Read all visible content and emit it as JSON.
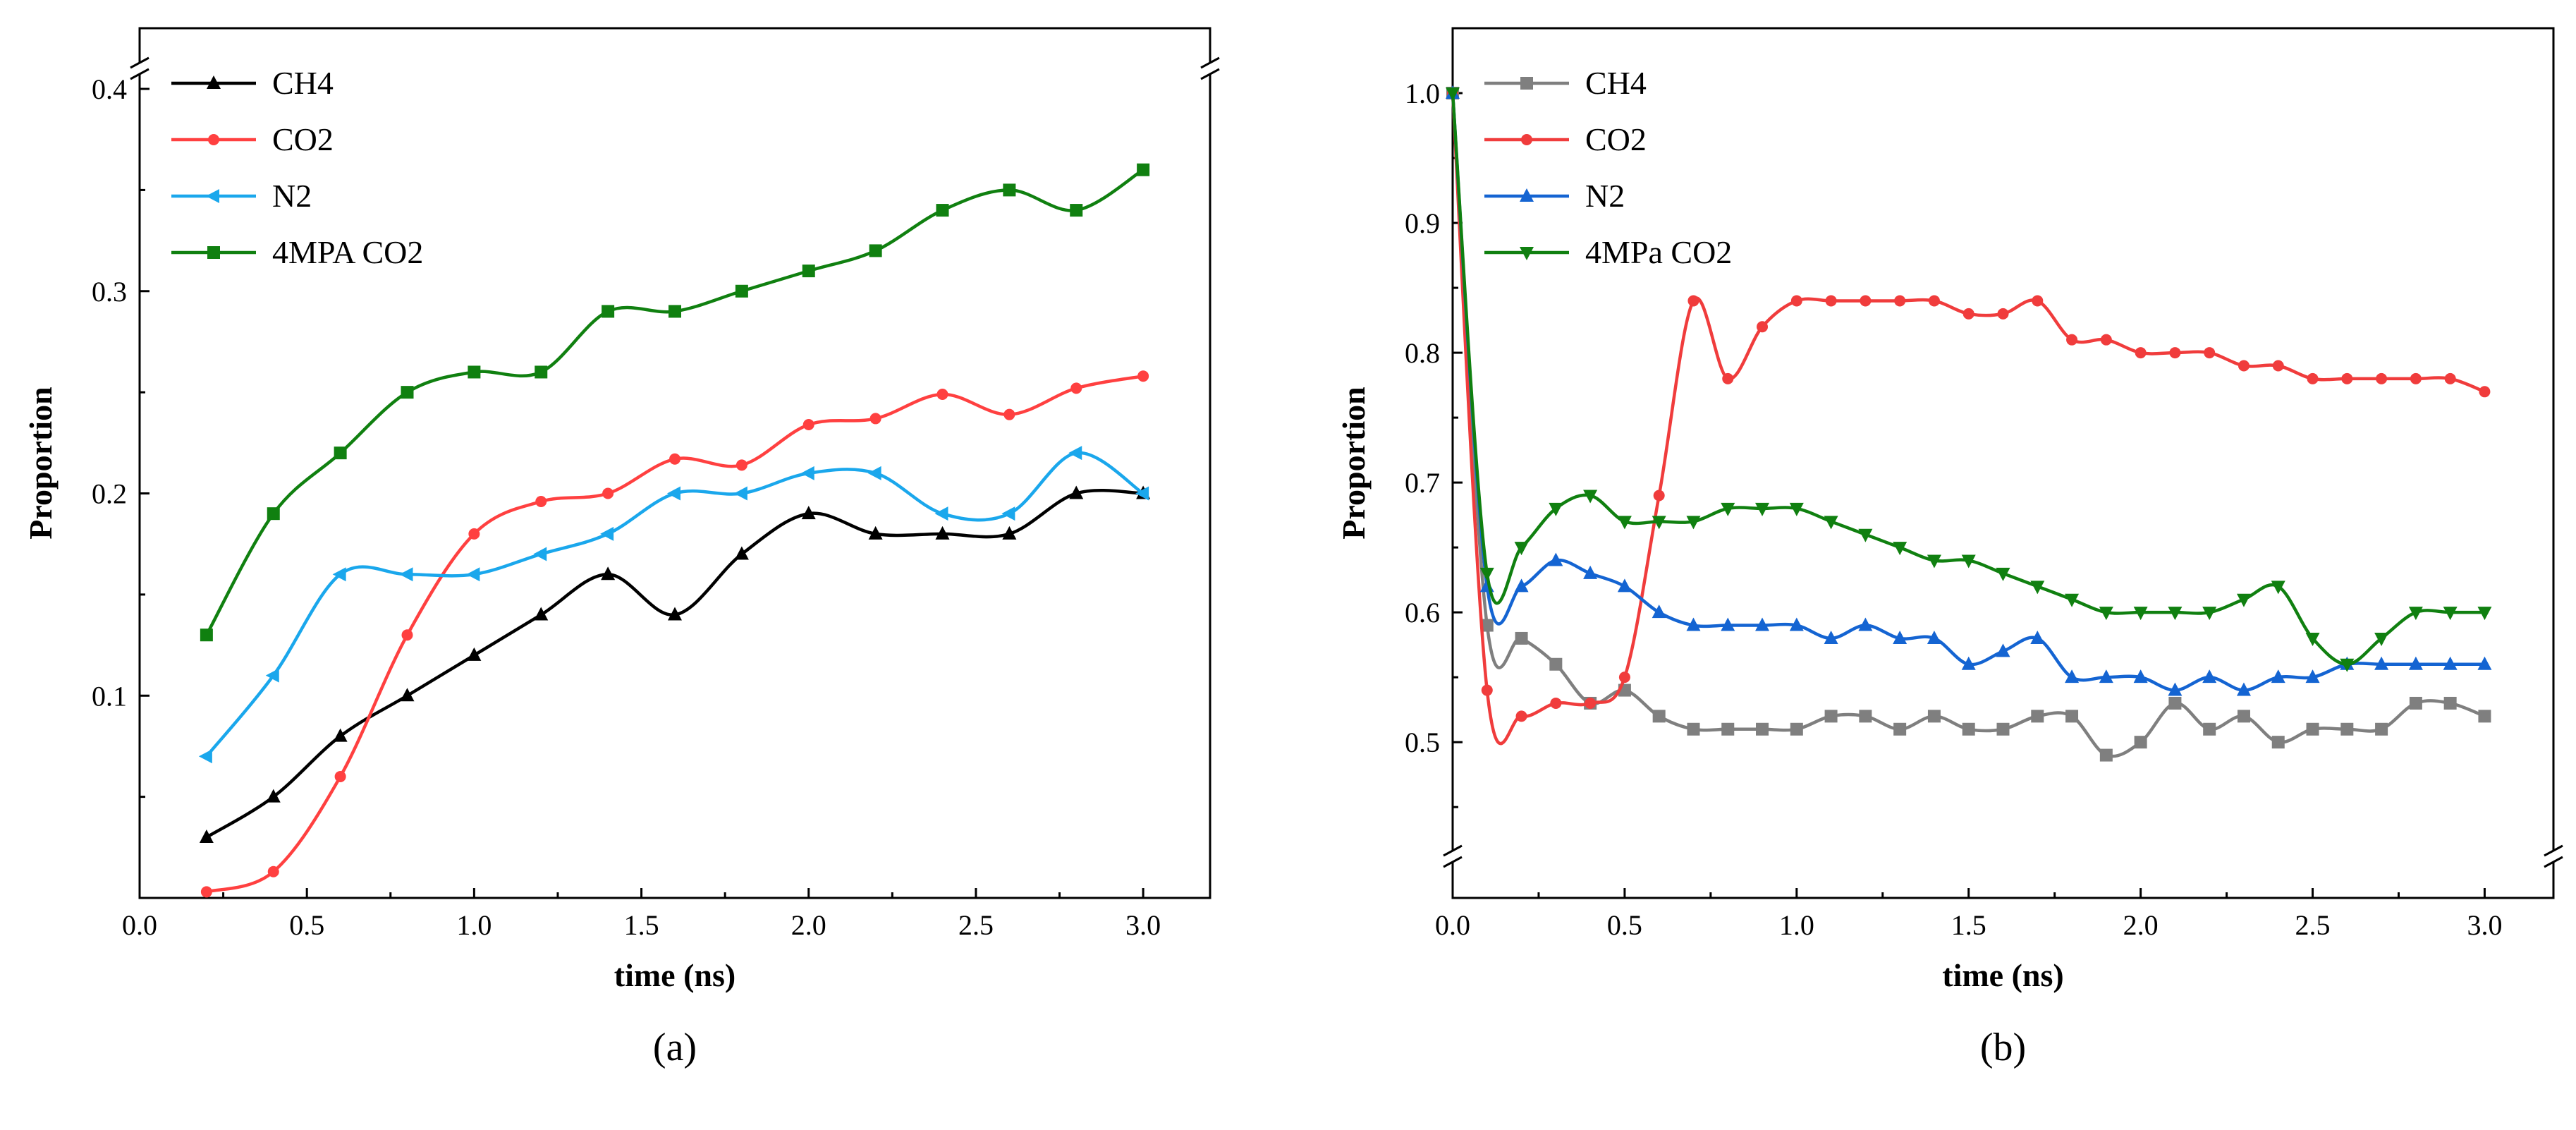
{
  "chart_data": [
    {
      "type": "line",
      "panel_label": "(a)",
      "xlabel": "time (ns)",
      "ylabel": "Proportion",
      "xlim": [
        0.0,
        3.2
      ],
      "ylim": [
        0.0,
        0.43
      ],
      "xticks": [
        "0.0",
        "0.5",
        "1.0",
        "1.5",
        "2.0",
        "2.5",
        "3.0"
      ],
      "yticks": [
        "0.1",
        "0.2",
        "0.3",
        "0.4"
      ],
      "axis_break": "y-axis top",
      "legend_position": "top-left",
      "grid": false,
      "x": [
        0.2,
        0.4,
        0.6,
        0.8,
        1.0,
        1.2,
        1.4,
        1.6,
        1.8,
        2.0,
        2.2,
        2.4,
        2.6,
        2.8,
        3.0
      ],
      "series": [
        {
          "name": "CH4",
          "color": "#000000",
          "marker": "triangle-up",
          "values": [
            0.03,
            0.05,
            0.08,
            0.1,
            0.12,
            0.14,
            0.16,
            0.14,
            0.17,
            0.19,
            0.18,
            0.18,
            0.18,
            0.2,
            0.2
          ]
        },
        {
          "name": "CO2",
          "color": "#ff4040",
          "marker": "circle",
          "values": [
            0.003,
            0.013,
            0.06,
            0.13,
            0.18,
            0.196,
            0.2,
            0.217,
            0.214,
            0.234,
            0.237,
            0.249,
            0.239,
            0.252,
            0.258
          ]
        },
        {
          "name": "N2",
          "color": "#1aa7ec",
          "marker": "triangle-left",
          "values": [
            0.07,
            0.11,
            0.16,
            0.16,
            0.16,
            0.17,
            0.18,
            0.2,
            0.2,
            0.21,
            0.21,
            0.19,
            0.19,
            0.22,
            0.2
          ]
        },
        {
          "name": "4MPA CO2",
          "color": "#108010",
          "marker": "square",
          "values": [
            0.13,
            0.19,
            0.22,
            0.25,
            0.26,
            0.26,
            0.29,
            0.29,
            0.3,
            0.31,
            0.32,
            0.34,
            0.35,
            0.34,
            0.36
          ]
        }
      ]
    },
    {
      "type": "line",
      "panel_label": "(b)",
      "xlabel": "time (ns)",
      "ylabel": "Proportion",
      "xlim": [
        0.0,
        3.2
      ],
      "ylim": [
        0.38,
        1.05
      ],
      "xticks": [
        "0.0",
        "0.5",
        "1.0",
        "1.5",
        "2.0",
        "2.5",
        "3.0"
      ],
      "yticks": [
        "0.5",
        "0.6",
        "0.7",
        "0.8",
        "0.9",
        "1.0"
      ],
      "axis_break": "y-axis bottom",
      "legend_position": "top-left",
      "grid": false,
      "x": [
        0.0,
        0.1,
        0.2,
        0.3,
        0.4,
        0.5,
        0.6,
        0.7,
        0.8,
        0.9,
        1.0,
        1.1,
        1.2,
        1.3,
        1.4,
        1.5,
        1.6,
        1.7,
        1.8,
        1.9,
        2.0,
        2.1,
        2.2,
        2.3,
        2.4,
        2.5,
        2.6,
        2.7,
        2.8,
        2.9,
        3.0
      ],
      "series": [
        {
          "name": "CH4",
          "color": "#7f7f7f",
          "marker": "square",
          "values": [
            1.0,
            0.59,
            0.58,
            0.56,
            0.53,
            0.54,
            0.52,
            0.51,
            0.51,
            0.51,
            0.51,
            0.52,
            0.52,
            0.51,
            0.52,
            0.51,
            0.51,
            0.52,
            0.52,
            0.49,
            0.5,
            0.53,
            0.51,
            0.52,
            0.5,
            0.51,
            0.51,
            0.51,
            0.53,
            0.53,
            0.52
          ]
        },
        {
          "name": "CO2",
          "color": "#f03c3c",
          "marker": "circle",
          "values": [
            1.0,
            0.54,
            0.52,
            0.53,
            0.53,
            0.55,
            0.69,
            0.84,
            0.78,
            0.82,
            0.84,
            0.84,
            0.84,
            0.84,
            0.84,
            0.83,
            0.83,
            0.84,
            0.81,
            0.81,
            0.8,
            0.8,
            0.8,
            0.79,
            0.79,
            0.78,
            0.78,
            0.78,
            0.78,
            0.78,
            0.77
          ]
        },
        {
          "name": "N2",
          "color": "#1464d2",
          "marker": "triangle-up",
          "values": [
            1.0,
            0.62,
            0.62,
            0.64,
            0.63,
            0.62,
            0.6,
            0.59,
            0.59,
            0.59,
            0.59,
            0.58,
            0.59,
            0.58,
            0.58,
            0.56,
            0.57,
            0.58,
            0.55,
            0.55,
            0.55,
            0.54,
            0.55,
            0.54,
            0.55,
            0.55,
            0.56,
            0.56,
            0.56,
            0.56,
            0.56
          ]
        },
        {
          "name": "4MPa CO2",
          "color": "#108010",
          "marker": "triangle-down",
          "values": [
            1.0,
            0.63,
            0.65,
            0.68,
            0.69,
            0.67,
            0.67,
            0.67,
            0.68,
            0.68,
            0.68,
            0.67,
            0.66,
            0.65,
            0.64,
            0.64,
            0.63,
            0.62,
            0.61,
            0.6,
            0.6,
            0.6,
            0.6,
            0.61,
            0.62,
            0.58,
            0.56,
            0.58,
            0.6,
            0.6,
            0.6
          ]
        }
      ]
    }
  ]
}
